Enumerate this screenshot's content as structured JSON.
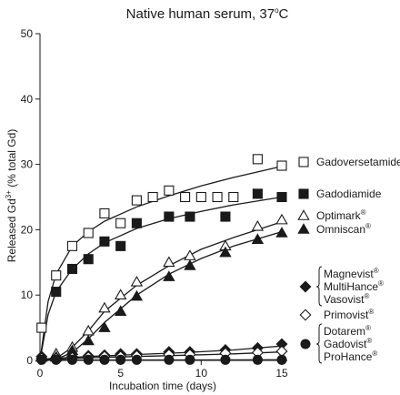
{
  "chart_data": {
    "type": "scatter",
    "title": "Native human serum, 37",
    "title_degree": "o",
    "title_unit": "C",
    "xlabel": "Incubation time (days)",
    "ylabel_prefix": "Released Gd",
    "ylabel_sup": "3+",
    "ylabel_suffix": " (% total Gd)",
    "xlim": [
      0,
      15.5
    ],
    "ylim": [
      0,
      50
    ],
    "x_ticks": [
      0,
      5,
      10,
      15
    ],
    "y_ticks": [
      0,
      10,
      20,
      30,
      40,
      50
    ],
    "grid": false,
    "legend_placement": "right",
    "series": [
      {
        "name": "Gadoversetamide",
        "marker": "square-open",
        "x": [
          0.1,
          1,
          2,
          3,
          4,
          5,
          6,
          7,
          8,
          9,
          10,
          11,
          12,
          13.5,
          15
        ],
        "y": [
          5,
          13,
          17.5,
          19.5,
          22.5,
          21,
          24.5,
          25,
          26,
          25,
          25,
          25,
          25,
          30.8,
          29.8
        ],
        "fit": [
          [
            0,
            0
          ],
          [
            0.5,
            9
          ],
          [
            1,
            13.2
          ],
          [
            2,
            17.5
          ],
          [
            3,
            19.7
          ],
          [
            4,
            21.3
          ],
          [
            6,
            23.5
          ],
          [
            8,
            25.2
          ],
          [
            10,
            26.7
          ],
          [
            12,
            28
          ],
          [
            15,
            29.7
          ]
        ]
      },
      {
        "name": "Gadodiamide",
        "marker": "square-filled",
        "x": [
          1,
          2,
          3,
          4,
          5,
          6,
          8,
          9.3,
          11.5,
          13.5,
          15
        ],
        "y": [
          10.5,
          14,
          15.5,
          18.2,
          17.5,
          21,
          22,
          22,
          22,
          25.5,
          25
        ],
        "fit": [
          [
            0,
            0
          ],
          [
            0.5,
            7
          ],
          [
            1,
            10.5
          ],
          [
            2,
            14
          ],
          [
            3,
            16.3
          ],
          [
            4,
            18
          ],
          [
            6,
            20.2
          ],
          [
            8,
            21.7
          ],
          [
            10,
            22.8
          ],
          [
            12,
            23.8
          ],
          [
            15,
            25
          ]
        ]
      },
      {
        "name": "Optimark",
        "sup": "®",
        "marker": "triangle-open",
        "x": [
          0.1,
          1,
          2,
          3,
          4,
          5,
          6,
          8,
          9.3,
          11.5,
          13.5,
          15
        ],
        "y": [
          0.5,
          1,
          2,
          4.5,
          8,
          10,
          12,
          15,
          16,
          17.5,
          20.5,
          21.5
        ],
        "fit": [
          [
            0,
            0
          ],
          [
            1,
            0.3
          ],
          [
            2,
            2
          ],
          [
            3,
            4.5
          ],
          [
            4,
            7.5
          ],
          [
            6,
            11.5
          ],
          [
            8,
            14.5
          ],
          [
            10,
            17
          ],
          [
            12,
            18.8
          ],
          [
            15,
            21.2
          ]
        ]
      },
      {
        "name": "Omniscan",
        "sup": "®",
        "marker": "triangle-filled",
        "x": [
          0.1,
          1,
          2,
          3,
          4,
          5,
          6,
          8,
          9.3,
          11.5,
          13.5,
          15
        ],
        "y": [
          0.5,
          0.5,
          1.5,
          3,
          5,
          7.5,
          9.8,
          12.8,
          14.5,
          16.5,
          18.5,
          19.5
        ],
        "fit": [
          [
            0,
            0
          ],
          [
            1,
            0.2
          ],
          [
            2,
            1.2
          ],
          [
            3,
            3.3
          ],
          [
            4,
            5.8
          ],
          [
            6,
            10
          ],
          [
            8,
            13.2
          ],
          [
            10,
            15.6
          ],
          [
            12,
            17.5
          ],
          [
            15,
            19.7
          ]
        ]
      },
      {
        "name": "Magnevist",
        "sup": "®",
        "marker": "diamond-filled",
        "x": [
          0.1,
          1,
          2,
          3,
          4,
          5,
          6,
          8,
          9.3,
          11.5,
          13.5,
          15
        ],
        "y": [
          0.6,
          0.4,
          0.6,
          0.7,
          0.8,
          1,
          1,
          1.3,
          1.3,
          1.6,
          1.9,
          2.5
        ],
        "fit": [
          [
            0,
            0.2
          ],
          [
            3,
            0.6
          ],
          [
            6,
            0.9
          ],
          [
            9,
            1.2
          ],
          [
            12,
            1.6
          ],
          [
            15,
            2.2
          ]
        ]
      },
      {
        "name": "Primovist",
        "sup": "®",
        "marker": "diamond-open",
        "x": [
          0.1,
          1,
          2,
          3,
          4,
          5,
          6,
          8,
          9.3,
          11.5,
          13.5,
          15
        ],
        "y": [
          0.3,
          0.3,
          0.4,
          0.5,
          0.6,
          0.6,
          0.7,
          0.9,
          0.9,
          1.1,
          1.2,
          1.4
        ],
        "fit": [
          [
            0,
            0.1
          ],
          [
            3,
            0.4
          ],
          [
            6,
            0.6
          ],
          [
            9,
            0.8
          ],
          [
            12,
            1
          ],
          [
            15,
            1.3
          ]
        ]
      },
      {
        "name": "Dotarem",
        "sup": "®",
        "marker": "circle-filled",
        "x": [
          0.1,
          1,
          2,
          3,
          4,
          5,
          6,
          8,
          9.3,
          11.5,
          13.5,
          15
        ],
        "y": [
          0.1,
          0.1,
          0.1,
          0.1,
          0.1,
          0.1,
          0.1,
          0.1,
          0.1,
          0.1,
          0.1,
          0.1
        ],
        "fit": [
          [
            0,
            0.05
          ],
          [
            15,
            0.1
          ]
        ]
      }
    ],
    "legend": [
      {
        "lines": [
          {
            "text": "Gadoversetamide"
          }
        ],
        "marker": "square-open"
      },
      {
        "lines": [
          {
            "text": "Gadodiamide"
          }
        ],
        "marker": "square-filled"
      },
      {
        "lines": [
          {
            "text": "Optimark",
            "sup": "®"
          }
        ],
        "marker": "triangle-open"
      },
      {
        "lines": [
          {
            "text": "Omniscan",
            "sup": "®"
          }
        ],
        "marker": "triangle-filled"
      },
      {
        "lines": [
          {
            "text": "Magnevist",
            "sup": "®"
          },
          {
            "text": "MultiHance",
            "sup": "®"
          },
          {
            "text": "Vasovist",
            "sup": "®"
          }
        ],
        "marker": "diamond-filled"
      },
      {
        "lines": [
          {
            "text": "Primovist",
            "sup": "®"
          }
        ],
        "marker": "diamond-open"
      },
      {
        "lines": [
          {
            "text": "Dotarem",
            "sup": "®"
          },
          {
            "text": "Gadovist",
            "sup": "®"
          },
          {
            "text": "ProHance",
            "sup": "®"
          }
        ],
        "marker": "circle-filled"
      }
    ]
  }
}
